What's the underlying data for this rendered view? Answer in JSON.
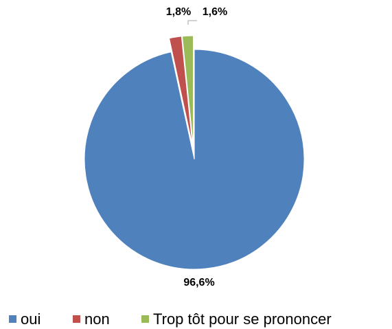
{
  "chart_data": {
    "type": "pie",
    "categories": [
      "oui",
      "non",
      "Trop tôt pour se prononcer"
    ],
    "values": [
      96.6,
      1.8,
      1.6
    ],
    "value_labels": [
      "96,6%",
      "1,8%",
      "1,6%"
    ],
    "colors": [
      "#4f81bd",
      "#c0504d",
      "#9bbb59"
    ],
    "legend": "bottom"
  }
}
